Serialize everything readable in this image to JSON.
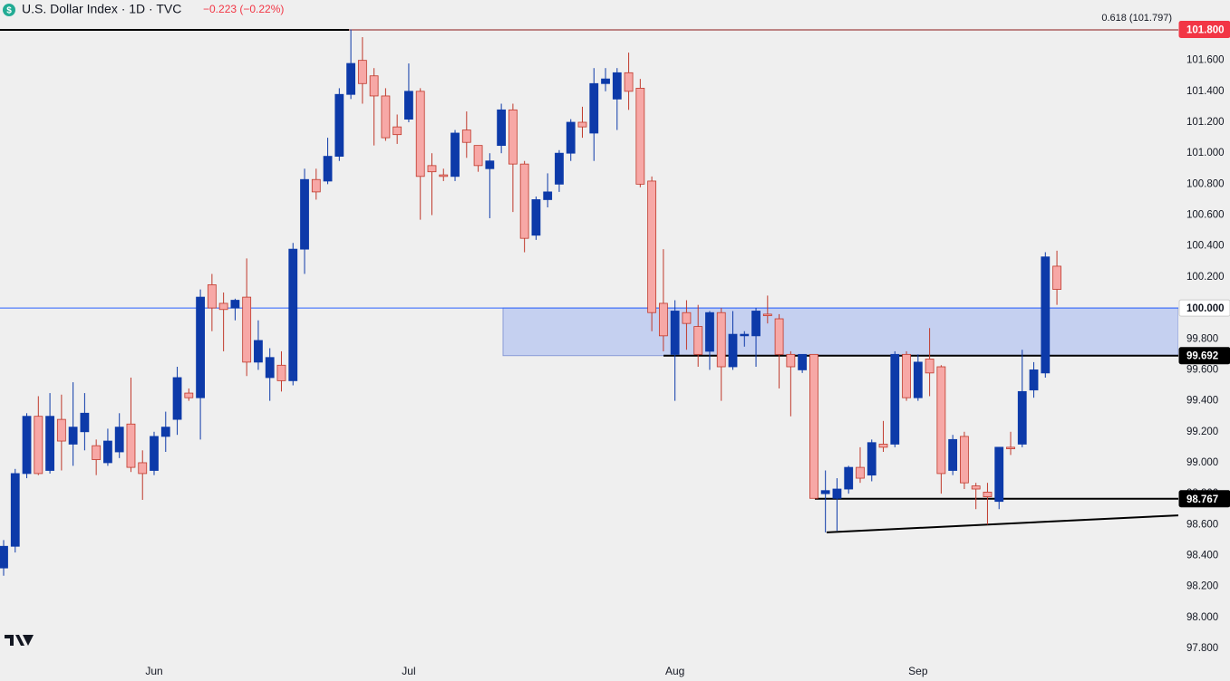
{
  "chart_data": {
    "type": "candlestick",
    "title": "U.S. Dollar Index · 1D · TVC",
    "change": "−0.223 (−0.22%)",
    "categories": [
      null,
      null,
      null,
      null,
      null,
      null,
      null,
      null,
      null,
      null,
      null,
      null,
      null,
      "Jun",
      null,
      null,
      null,
      null,
      null,
      null,
      null,
      null,
      null,
      null,
      null,
      null,
      null,
      null,
      null,
      null,
      null,
      null,
      null,
      null,
      null,
      "Jul",
      null,
      null,
      null,
      null,
      null,
      null,
      null,
      null,
      null,
      null,
      null,
      null,
      null,
      null,
      null,
      null,
      null,
      null,
      null,
      null,
      null,
      null,
      "Aug",
      null,
      null,
      null,
      null,
      null,
      null,
      null,
      null,
      null,
      null,
      null,
      null,
      null,
      null,
      null,
      null,
      null,
      null,
      null,
      null,
      "Sep",
      null,
      null,
      null,
      null,
      null,
      null,
      null,
      null,
      null,
      null,
      null,
      null
    ],
    "open": [
      98.32,
      98.46,
      98.93,
      99.3,
      98.95,
      99.28,
      99.12,
      99.2,
      99.11,
      99.0,
      99.07,
      99.25,
      99.0,
      98.95,
      99.17,
      99.28,
      99.45,
      99.42,
      100.15,
      100.03,
      100.0,
      100.07,
      99.65,
      99.55,
      99.63,
      99.53,
      100.38,
      100.83,
      100.82,
      100.98,
      101.38,
      101.6,
      101.5,
      101.37,
      101.17,
      101.22,
      101.4,
      100.92,
      100.86,
      100.85,
      101.15,
      101.05,
      100.9,
      101.05,
      101.28,
      100.93,
      100.47,
      100.7,
      100.8,
      101.0,
      101.2,
      101.13,
      101.45,
      101.35,
      101.52,
      101.42,
      100.82,
      100.03,
      99.7,
      99.97,
      99.88,
      99.72,
      99.97,
      99.62,
      99.82,
      99.82,
      99.96,
      99.93,
      99.7,
      99.6,
      99.7,
      98.8,
      98.77,
      98.83,
      98.97,
      98.92,
      99.12,
      99.12,
      99.7,
      99.42,
      99.67,
      99.62,
      98.95,
      99.17,
      98.85,
      98.81,
      98.75,
      99.1,
      99.12,
      99.47,
      99.58,
      100.27
    ],
    "high": [
      98.5,
      98.96,
      99.32,
      99.43,
      99.45,
      99.44,
      99.52,
      99.45,
      99.15,
      99.22,
      99.32,
      99.55,
      99.08,
      99.2,
      99.33,
      99.62,
      99.48,
      100.12,
      100.22,
      100.1,
      100.06,
      100.32,
      99.92,
      99.74,
      99.72,
      100.42,
      100.9,
      100.9,
      101.1,
      101.42,
      101.8,
      101.75,
      101.55,
      101.42,
      101.25,
      101.58,
      101.42,
      101.0,
      100.9,
      101.15,
      101.27,
      101.05,
      101.0,
      101.32,
      101.32,
      100.95,
      100.72,
      100.87,
      101.02,
      101.22,
      101.3,
      101.55,
      101.55,
      101.55,
      101.65,
      101.48,
      100.85,
      100.38,
      100.05,
      100.05,
      100.02,
      99.98,
      100.0,
      99.98,
      99.85,
      100.0,
      100.08,
      99.96,
      99.72,
      99.7,
      99.7,
      98.95,
      98.9,
      98.98,
      99.1,
      99.15,
      99.27,
      99.72,
      99.72,
      99.7,
      99.87,
      99.63,
      99.18,
      99.2,
      98.87,
      98.87,
      99.1,
      99.2,
      99.73,
      99.65,
      100.36,
      100.37
    ],
    "low": [
      98.27,
      98.42,
      98.9,
      98.92,
      98.93,
      98.95,
      98.98,
      99.08,
      98.92,
      98.98,
      99.03,
      98.94,
      98.76,
      98.92,
      99.07,
      99.18,
      99.4,
      99.15,
      99.85,
      99.72,
      99.92,
      99.56,
      99.6,
      99.4,
      99.46,
      99.5,
      100.22,
      100.7,
      100.8,
      100.95,
      101.35,
      101.32,
      101.05,
      101.08,
      101.06,
      101.2,
      100.57,
      100.6,
      100.82,
      100.82,
      100.97,
      100.88,
      100.58,
      101.0,
      100.62,
      100.36,
      100.44,
      100.65,
      100.75,
      100.95,
      101.1,
      100.95,
      101.4,
      101.15,
      101.28,
      100.78,
      99.85,
      99.72,
      99.4,
      99.73,
      99.62,
      99.6,
      99.4,
      99.6,
      99.75,
      99.62,
      99.9,
      99.48,
      99.3,
      99.58,
      98.77,
      98.55,
      98.56,
      98.8,
      98.87,
      98.88,
      99.07,
      99.1,
      99.4,
      99.4,
      99.43,
      98.8,
      98.92,
      98.83,
      98.7,
      98.6,
      98.7,
      99.05,
      99.1,
      99.42,
      99.55,
      100.02
    ],
    "close": [
      98.46,
      98.93,
      99.3,
      98.93,
      99.3,
      99.14,
      99.23,
      99.32,
      99.02,
      99.14,
      99.23,
      98.97,
      98.93,
      99.17,
      99.23,
      99.55,
      99.42,
      100.07,
      100.0,
      99.99,
      100.05,
      99.65,
      99.79,
      99.68,
      99.53,
      100.38,
      100.83,
      100.75,
      100.98,
      101.38,
      101.58,
      101.45,
      101.37,
      101.1,
      101.12,
      101.4,
      100.85,
      100.88,
      100.85,
      101.13,
      101.07,
      100.92,
      100.95,
      101.28,
      100.93,
      100.45,
      100.7,
      100.75,
      101.0,
      101.2,
      101.17,
      101.45,
      101.48,
      101.52,
      101.4,
      100.8,
      99.97,
      99.82,
      99.98,
      99.9,
      99.7,
      99.97,
      99.62,
      99.83,
      99.83,
      99.98,
      99.95,
      99.7,
      99.62,
      99.7,
      98.77,
      98.82,
      98.83,
      98.97,
      98.9,
      99.13,
      99.1,
      99.7,
      99.42,
      99.65,
      99.58,
      98.93,
      99.15,
      98.87,
      98.83,
      98.78,
      99.1,
      99.09,
      99.46,
      99.6,
      100.33,
      100.12
    ],
    "up_color": "#0d3aa9",
    "down_color": "#f7a8a6",
    "down_border": "#c0392b",
    "ylim": [
      97.73,
      101.99
    ],
    "yticks": [
      {
        "value": 97.8,
        "label": "97.800"
      },
      {
        "value": 98,
        "label": "98.000"
      },
      {
        "value": 98.2,
        "label": "98.200"
      },
      {
        "value": 98.4,
        "label": "98.400"
      },
      {
        "value": 98.6,
        "label": "98.600"
      },
      {
        "value": 98.8,
        "label": "98.800"
      },
      {
        "value": 99,
        "label": "99.000"
      },
      {
        "value": 99.2,
        "label": "99.200"
      },
      {
        "value": 99.4,
        "label": "99.400"
      },
      {
        "value": 99.6,
        "label": "99.600"
      },
      {
        "value": 99.8,
        "label": "99.800"
      },
      {
        "value": 100.2,
        "label": "100.200"
      },
      {
        "value": 100.4,
        "label": "100.400"
      },
      {
        "value": 100.6,
        "label": "100.600"
      },
      {
        "value": 100.8,
        "label": "100.800"
      },
      {
        "value": 101,
        "label": "101.000"
      },
      {
        "value": 101.2,
        "label": "101.200"
      },
      {
        "value": 101.4,
        "label": "101.400"
      },
      {
        "value": 101.6,
        "label": "101.600"
      }
    ],
    "fib_level": {
      "value": 101.797,
      "label": "0.618 (101.797)"
    },
    "price_labels": [
      {
        "value": 101.8,
        "label": "101.800",
        "color": "#f23645"
      },
      {
        "value": 100,
        "label": "100.000",
        "color": "#ffffff"
      },
      {
        "value": 99.692,
        "label": "99.692",
        "color": "#000000"
      },
      {
        "value": 98.767,
        "label": "98.767",
        "color": "#000000"
      }
    ],
    "trendline": [
      98.55,
      98.66
    ],
    "zone_color": "#c5d0f0"
  }
}
